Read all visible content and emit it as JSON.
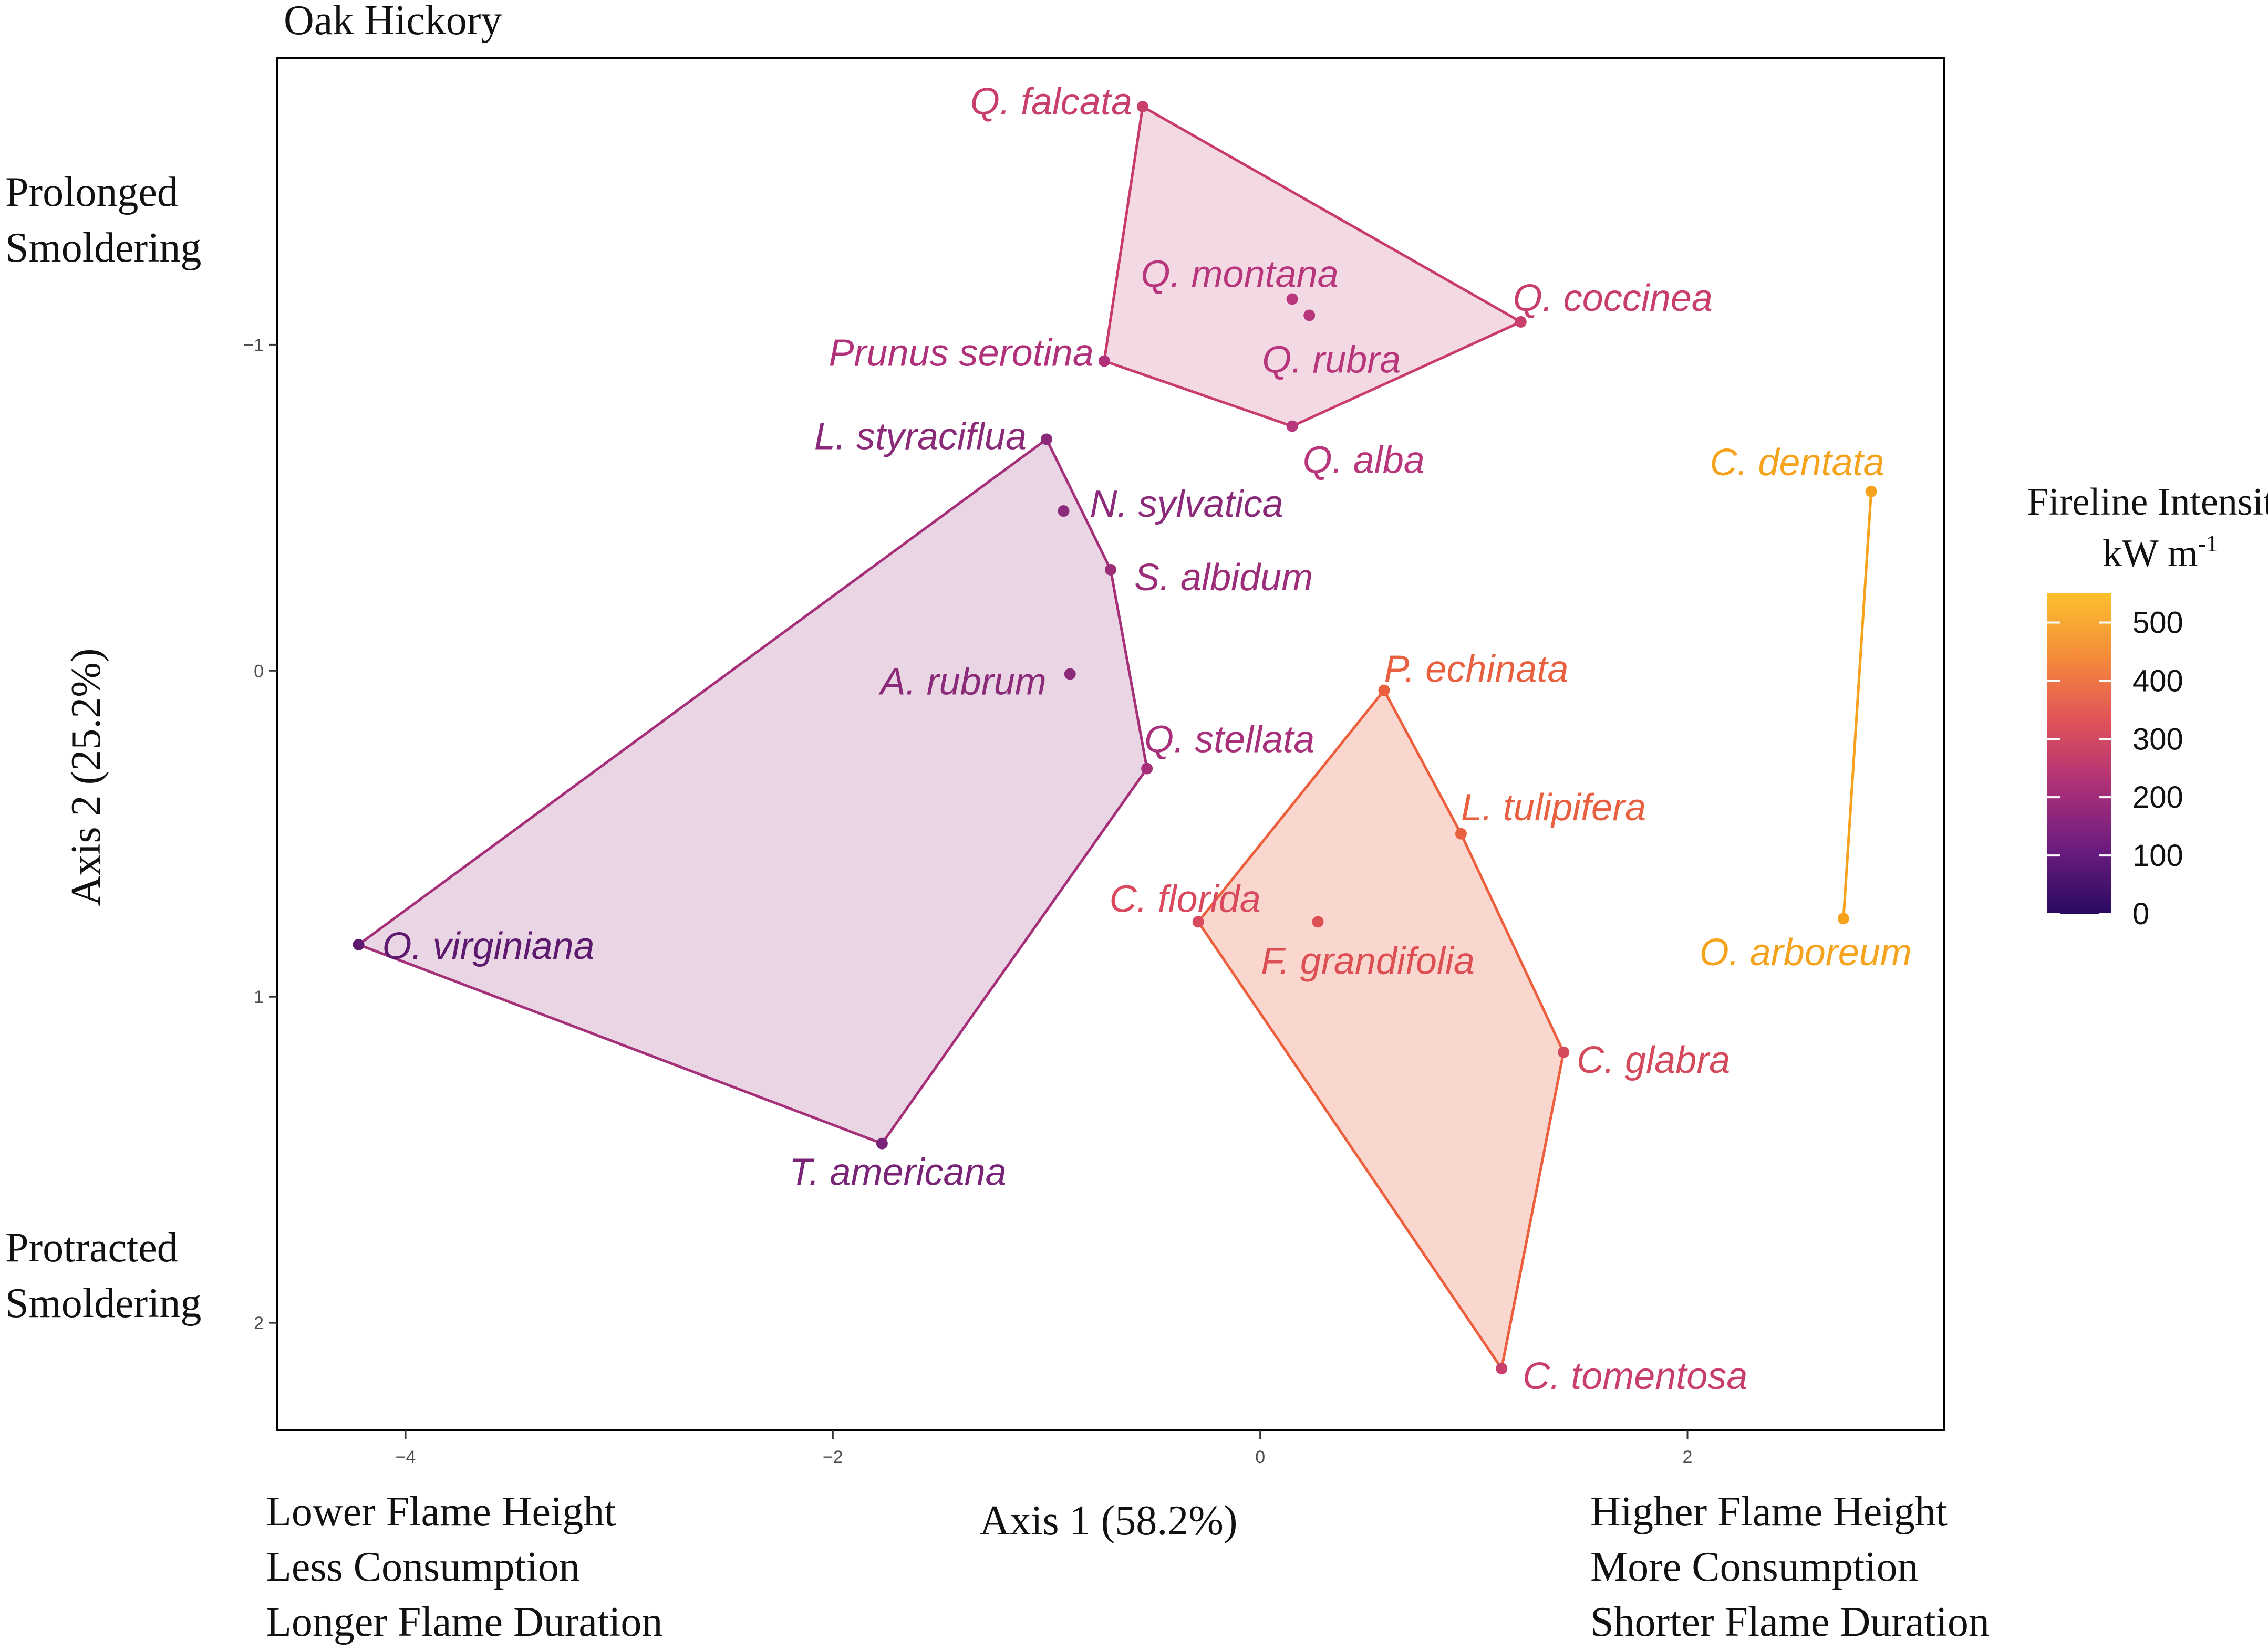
{
  "chart_data": {
    "type": "scatter",
    "title": "Oak Hickory",
    "xlabel": "Axis 1 (58.2%)",
    "ylabel": "Axis 2 (25.2%)",
    "xlim": [
      -4.6,
      3.2
    ],
    "ylim": [
      -1.88,
      2.33
    ],
    "y_reversed": true,
    "grid": false,
    "x_ticks": [
      -4,
      -2,
      0,
      2
    ],
    "x_tick_labels": [
      "−4",
      "−2",
      "0",
      "2"
    ],
    "y_ticks": [
      -1,
      0,
      1,
      2
    ],
    "y_tick_labels": [
      "−1",
      "0",
      "1",
      "2"
    ],
    "x_annotations": {
      "left": [
        "Lower Flame Height",
        "Less Consumption",
        "Longer Flame Duration"
      ],
      "right": [
        "Higher Flame Height",
        "More Consumption",
        "Shorter Flame Duration"
      ]
    },
    "y_annotations": {
      "top": [
        "Prolonged",
        "Smoldering"
      ],
      "bottom": [
        "Protracted",
        "Smoldering"
      ]
    },
    "legend": {
      "title_line1": "Fireline Intensity",
      "title_line2": "kW m",
      "title_sup": "-1",
      "placement": "right",
      "range": [
        0,
        550
      ],
      "ticks": [
        0,
        100,
        200,
        300,
        400,
        500
      ],
      "tick_labels": [
        "0",
        "100",
        "200",
        "300",
        "400",
        "500"
      ]
    },
    "colors": {
      "scale": [
        "#2a0a61",
        "#7b2382",
        "#c23f6e",
        "#ec6a43",
        "#f9a325",
        "#fdc22e"
      ],
      "group_1": "#c0407a",
      "group_2": "#932c78",
      "group_3": "#ec5e3c",
      "group_4": "#f7a21d"
    },
    "points": [
      {
        "label": "Q. falcata",
        "x": -0.55,
        "y": -1.73,
        "color": "#c8406a",
        "group": 1,
        "anchor": "end",
        "dx": -20,
        "dy": -4
      },
      {
        "label": "Q. montana",
        "x": 0.15,
        "y": -1.14,
        "color": "#b8377c",
        "group": 1,
        "anchor": "middle",
        "dx": -100,
        "dy": -42
      },
      {
        "label": "Q. rubra",
        "x": 0.23,
        "y": -1.09,
        "color": "#b8377c",
        "group": 1,
        "anchor": "start",
        "dx": -90,
        "dy": 90
      },
      {
        "label": "Q. coccinea",
        "x": 1.22,
        "y": -1.07,
        "color": "#c8406a",
        "group": 1,
        "anchor": "start",
        "dx": -15,
        "dy": -40
      },
      {
        "label": "Prunus serotina",
        "x": -0.73,
        "y": -0.95,
        "color": "#b0307a",
        "group": 1,
        "anchor": "end",
        "dx": -20,
        "dy": -10
      },
      {
        "label": "Q. alba",
        "x": 0.15,
        "y": -0.75,
        "color": "#b8377c",
        "group": 1,
        "anchor": "start",
        "dx": 20,
        "dy": 70
      },
      {
        "label": "L. styraciflua",
        "x": -1.0,
        "y": -0.71,
        "color": "#8a2a78",
        "group": 2,
        "anchor": "end",
        "dx": -38,
        "dy": 0
      },
      {
        "label": "N. sylvatica",
        "x": -0.92,
        "y": -0.49,
        "color": "#8a2a78",
        "group": 2,
        "anchor": "start",
        "dx": 50,
        "dy": -8
      },
      {
        "label": "S. albidum",
        "x": -0.7,
        "y": -0.31,
        "color": "#9c2d78",
        "group": 2,
        "anchor": "start",
        "dx": 45,
        "dy": 20
      },
      {
        "label": "A. rubrum",
        "x": -0.89,
        "y": 0.01,
        "color": "#8a2a78",
        "group": 2,
        "anchor": "end",
        "dx": -45,
        "dy": 20
      },
      {
        "label": "Q. stellata",
        "x": -0.53,
        "y": 0.3,
        "color": "#a8307a",
        "group": 2,
        "anchor": "start",
        "dx": -5,
        "dy": -50
      },
      {
        "label": "O. virginiana",
        "x": -4.22,
        "y": 0.84,
        "color": "#5e1a6e",
        "group": 2,
        "anchor": "start",
        "dx": 45,
        "dy": 8
      },
      {
        "label": "T. americana",
        "x": -1.77,
        "y": 1.45,
        "color": "#7a2478",
        "group": 2,
        "anchor": "middle",
        "dx": 30,
        "dy": 60
      },
      {
        "label": "P. echinata",
        "x": 0.58,
        "y": 0.06,
        "color": "#e8603f",
        "group": 3,
        "anchor": "start",
        "dx": 0,
        "dy": -35
      },
      {
        "label": "L. tulipifera",
        "x": 0.94,
        "y": 0.5,
        "color": "#e8603f",
        "group": 3,
        "anchor": "start",
        "dx": 0,
        "dy": -45
      },
      {
        "label": "C. florida",
        "x": -0.29,
        "y": 0.77,
        "color": "#d94a5e",
        "group": 3,
        "anchor": "middle",
        "dx": -25,
        "dy": -38
      },
      {
        "label": "F. grandifolia",
        "x": 0.27,
        "y": 0.77,
        "color": "#dc4f53",
        "group": 3,
        "anchor": "middle",
        "dx": 95,
        "dy": 80
      },
      {
        "label": "C. glabra",
        "x": 1.42,
        "y": 1.17,
        "color": "#d44a5c",
        "group": 3,
        "anchor": "start",
        "dx": 25,
        "dy": 20
      },
      {
        "label": "C. tomentosa",
        "x": 1.13,
        "y": 2.14,
        "color": "#c83f6c",
        "group": 3,
        "anchor": "start",
        "dx": 40,
        "dy": 20
      },
      {
        "label": "C. dentata",
        "x": 2.86,
        "y": -0.55,
        "color": "#f5a31d",
        "group": 4,
        "anchor": "end",
        "dx": 25,
        "dy": -50
      },
      {
        "label": "O. arboreum",
        "x": 2.73,
        "y": 0.76,
        "color": "#f5a31d",
        "group": 4,
        "anchor": "end",
        "dx": 130,
        "dy": 70
      }
    ],
    "hulls": [
      {
        "group": 1,
        "stroke": "#c83b6a",
        "fill": "#c0407a",
        "fill_opacity": 0.2,
        "vertices": [
          "Q. falcata",
          "Q. coccinea",
          "Q. alba",
          "Prunus serotina"
        ]
      },
      {
        "group": 2,
        "stroke": "#a52f78",
        "fill": "#932c78",
        "fill_opacity": 0.2,
        "vertices": [
          "L. styraciflua",
          "S. albidum",
          "Q. stellata",
          "T. americana",
          "O. virginiana"
        ]
      },
      {
        "group": 3,
        "stroke": "#ec5e3c",
        "fill": "#ec5e3c",
        "fill_opacity": 0.25,
        "vertices": [
          "P. echinata",
          "L. tulipifera",
          "C. glabra",
          "C. tomentosa",
          "C. florida"
        ]
      },
      {
        "group": 4,
        "stroke": "#f7a21d",
        "fill": "none",
        "fill_opacity": 0,
        "vertices": [
          "C. dentata",
          "O. arboreum"
        ]
      }
    ]
  }
}
